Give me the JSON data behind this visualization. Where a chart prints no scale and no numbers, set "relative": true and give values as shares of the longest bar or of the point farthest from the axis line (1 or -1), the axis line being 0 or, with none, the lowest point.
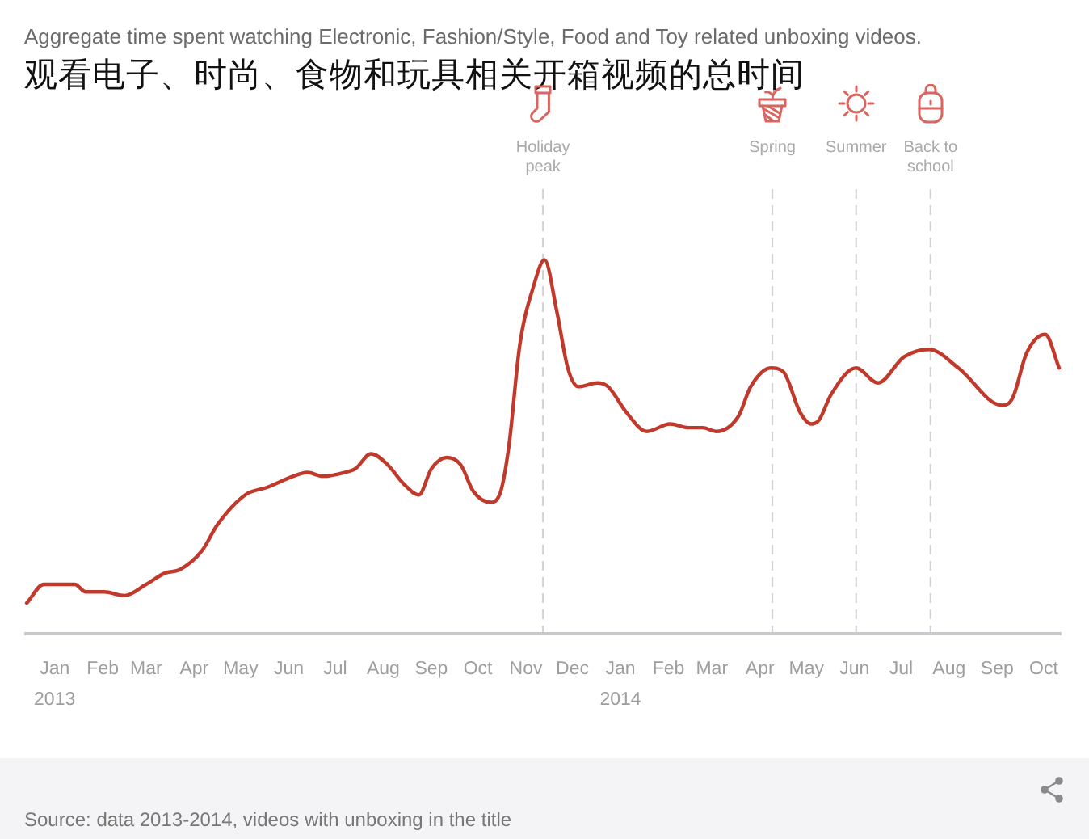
{
  "chart_data": {
    "type": "line",
    "title": "Aggregate time spent watching Electronic, Fashion/Style, Food and Toy related unboxing videos.",
    "subtitle": "观看电子、时尚、食物和玩具相关开箱视频的总时间",
    "annotations": [
      "Source: data 2013-2014, videos with unboxing in the title"
    ],
    "relative": true,
    "color": "#c0392b",
    "marker": "none",
    "legend": false,
    "xlim": [
      "2013-01-01",
      "2014-10-31"
    ],
    "xticks": [
      {
        "value": "2013-01-20",
        "label": "Jan\n2013"
      },
      {
        "value": "2013-02-20",
        "label": "Feb"
      },
      {
        "value": "2013-03-20",
        "label": "Mar"
      },
      {
        "value": "2013-04-20",
        "label": "Apr"
      },
      {
        "value": "2013-05-20",
        "label": "May"
      },
      {
        "value": "2013-06-20",
        "label": "Jun"
      },
      {
        "value": "2013-07-20",
        "label": "Jul"
      },
      {
        "value": "2013-08-20",
        "label": "Aug"
      },
      {
        "value": "2013-09-20",
        "label": "Sep"
      },
      {
        "value": "2013-10-20",
        "label": "Oct"
      },
      {
        "value": "2013-11-20",
        "label": "Nov"
      },
      {
        "value": "2013-12-20",
        "label": "Dec"
      },
      {
        "value": "2014-01-20",
        "label": "Jan\n2014"
      },
      {
        "value": "2014-02-20",
        "label": "Feb"
      },
      {
        "value": "2014-03-20",
        "label": "Mar"
      },
      {
        "value": "2014-04-20",
        "label": "Apr"
      },
      {
        "value": "2014-05-20",
        "label": "May"
      },
      {
        "value": "2014-06-20",
        "label": "Jun"
      },
      {
        "value": "2014-07-20",
        "label": "Jul"
      },
      {
        "value": "2014-08-20",
        "label": "Aug"
      },
      {
        "value": "2014-09-20",
        "label": "Sep"
      },
      {
        "value": "2014-10-20",
        "label": "Oct"
      }
    ],
    "x": [
      "2013-01-02",
      "2013-01-13",
      "2013-02-02",
      "2013-02-09",
      "2013-02-21",
      "2013-03-06",
      "2013-03-20",
      "2013-04-01",
      "2013-04-11",
      "2013-04-25",
      "2013-05-05",
      "2013-05-23",
      "2013-06-06",
      "2013-06-23",
      "2013-07-02",
      "2013-07-12",
      "2013-07-26",
      "2013-08-02",
      "2013-08-12",
      "2013-08-23",
      "2013-09-02",
      "2013-09-12",
      "2013-09-20",
      "2013-09-30",
      "2013-10-09",
      "2013-10-17",
      "2013-10-28",
      "2013-11-03",
      "2013-11-09",
      "2013-11-16",
      "2013-11-25",
      "2013-12-02",
      "2013-12-10",
      "2013-12-17",
      "2013-12-24",
      "2014-01-05",
      "2014-01-12",
      "2014-01-24",
      "2014-02-06",
      "2014-02-21",
      "2014-03-05",
      "2014-03-14",
      "2014-03-23",
      "2014-04-06",
      "2014-04-14",
      "2014-04-27",
      "2014-05-05",
      "2014-05-16",
      "2014-05-23",
      "2014-05-28",
      "2014-06-05",
      "2014-06-21",
      "2014-07-05",
      "2014-07-22",
      "2014-08-07",
      "2014-08-26",
      "2014-09-23",
      "2014-09-30",
      "2014-10-09",
      "2014-10-21",
      "2014-10-30"
    ],
    "values": [
      0.08,
      0.13,
      0.13,
      0.11,
      0.11,
      0.1,
      0.13,
      0.16,
      0.17,
      0.22,
      0.29,
      0.37,
      0.39,
      0.42,
      0.43,
      0.42,
      0.43,
      0.44,
      0.48,
      0.45,
      0.4,
      0.37,
      0.44,
      0.47,
      0.45,
      0.38,
      0.35,
      0.37,
      0.5,
      0.77,
      0.93,
      1,
      0.86,
      0.71,
      0.66,
      0.67,
      0.66,
      0.59,
      0.54,
      0.56,
      0.55,
      0.55,
      0.54,
      0.58,
      0.66,
      0.71,
      0.7,
      0.59,
      0.56,
      0.57,
      0.64,
      0.71,
      0.67,
      0.74,
      0.76,
      0.71,
      0.61,
      0.63,
      0.75,
      0.8,
      0.71
    ],
    "ref_lines": [
      {
        "axis": "x",
        "value": "2013-12-01",
        "label": "Holiday\npeak",
        "color": "#d0d0d0",
        "line_style": "dashed"
      },
      {
        "axis": "x",
        "value": "2014-04-28",
        "label": "Spring",
        "color": "#d0d0d0",
        "line_style": "dashed"
      },
      {
        "axis": "x",
        "value": "2014-06-21",
        "label": "Summer",
        "color": "#d0d0d0",
        "line_style": "dashed"
      },
      {
        "axis": "x",
        "value": "2014-08-08",
        "label": "Back to\nschool",
        "color": "#d0d0d0",
        "line_style": "dashed"
      }
    ]
  }
}
